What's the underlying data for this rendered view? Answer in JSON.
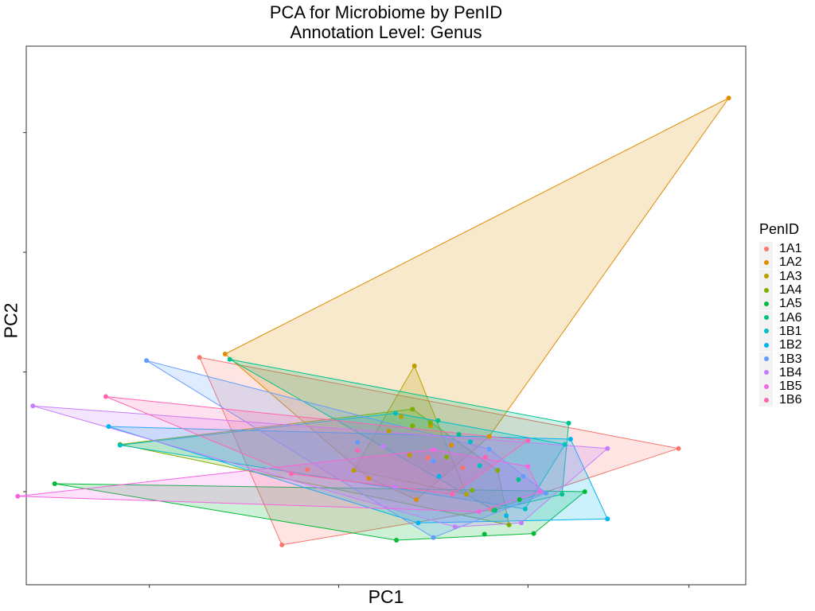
{
  "chart_data": {
    "type": "scatter",
    "title": "PCA for Microbiome by PenID",
    "subtitle": "Annotation Level: Genus",
    "xlabel": "PC1",
    "ylabel": "PC2",
    "xlim": [
      -2.3,
      5.3
    ],
    "ylim": [
      -2.4,
      5.7
    ],
    "x_ticks": [
      -1,
      1,
      3,
      4.7
    ],
    "y_ticks": [
      -1,
      0.8,
      2.6,
      4.4
    ],
    "grid": false,
    "hull_style": "convex polygon per group, alpha fill",
    "legend": {
      "title": "PenID",
      "position": "right"
    },
    "series": [
      {
        "name": "1A1",
        "color": "#F8766D",
        "x": [
          0.4,
          4.59,
          2.62,
          2.31,
          0.67,
          1.94,
          -0.47
        ],
        "y": [
          -1.8,
          -0.35,
          -1.27,
          -0.64,
          -0.67,
          -0.49,
          1.02
        ]
      },
      {
        "name": "1A2",
        "color": "#DE8C00",
        "x": [
          -0.2,
          5.12,
          1.82,
          2.19,
          2.59,
          1.32
        ],
        "y": [
          1.07,
          4.92,
          -1.12,
          -0.3,
          -0.17,
          -0.8
        ]
      },
      {
        "name": "1A3",
        "color": "#B79F00",
        "x": [
          1.8,
          1.75,
          2.35,
          1.53,
          1.66,
          1.16,
          1.97
        ],
        "y": [
          0.89,
          -0.45,
          -1.04,
          -0.09,
          0.13,
          -0.68,
          -0.01
        ]
      },
      {
        "name": "1A4",
        "color": "#7CAE00",
        "x": [
          -1.31,
          1.78,
          2.8,
          2.41,
          1.97,
          2.14,
          1.78,
          2.68
        ],
        "y": [
          -0.29,
          0.24,
          -1.5,
          -0.98,
          0.04,
          -0.48,
          -0.01,
          -0.68
        ]
      },
      {
        "name": "1A5",
        "color": "#00BA38",
        "x": [
          -2.0,
          2.54,
          3.06,
          3.6,
          2.65,
          1.61,
          2.91
        ],
        "y": [
          -0.88,
          -1.64,
          -1.63,
          -1.0,
          -1.28,
          -1.73,
          -1.12
        ]
      },
      {
        "name": "1A6",
        "color": "#00C08B",
        "x": [
          -0.15,
          3.43,
          2.64,
          2.27,
          2.05,
          3.36,
          2.9
        ],
        "y": [
          0.99,
          0.03,
          -1.28,
          -0.14,
          0.07,
          -1.04,
          -0.82
        ]
      },
      {
        "name": "1B1",
        "color": "#00BFC4",
        "x": [
          -1.31,
          3.39,
          2.97,
          2.49,
          1.6,
          2.39
        ],
        "y": [
          -0.3,
          -0.29,
          -1.26,
          -0.61,
          0.18,
          -0.25
        ]
      },
      {
        "name": "1B2",
        "color": "#00B4F0",
        "x": [
          -1.43,
          3.45,
          3.84,
          2.77,
          1.84,
          2.06
        ],
        "y": [
          -0.02,
          -0.21,
          -1.41,
          -1.36,
          -1.47,
          -0.77
        ]
      },
      {
        "name": "1B3",
        "color": "#619CFF",
        "x": [
          -1.03,
          2.95,
          3.19,
          2.0,
          2.0,
          1.2,
          2.59
        ],
        "y": [
          0.97,
          -0.77,
          -1.02,
          -1.69,
          -0.54,
          -0.26,
          -0.36
        ]
      },
      {
        "name": "1B4",
        "color": "#C77CFF",
        "x": [
          -2.23,
          3.84,
          2.93,
          2.23,
          1.47,
          1.59
        ],
        "y": [
          0.29,
          -0.35,
          -1.47,
          -1.53,
          -0.32,
          -0.93
        ]
      },
      {
        "name": "1B5",
        "color": "#F564E3",
        "x": [
          -2.39,
          3.0,
          3.13,
          2.48,
          2.0
        ],
        "y": [
          -1.07,
          -0.62,
          -1.0,
          -1.3,
          -0.37
        ]
      },
      {
        "name": "1B6",
        "color": "#FF64B0",
        "x": [
          -1.46,
          3.0,
          2.55,
          2.2,
          0.5,
          1.2
        ],
        "y": [
          0.43,
          -0.23,
          -0.48,
          -1.04,
          -0.73,
          -0.38
        ]
      }
    ]
  }
}
